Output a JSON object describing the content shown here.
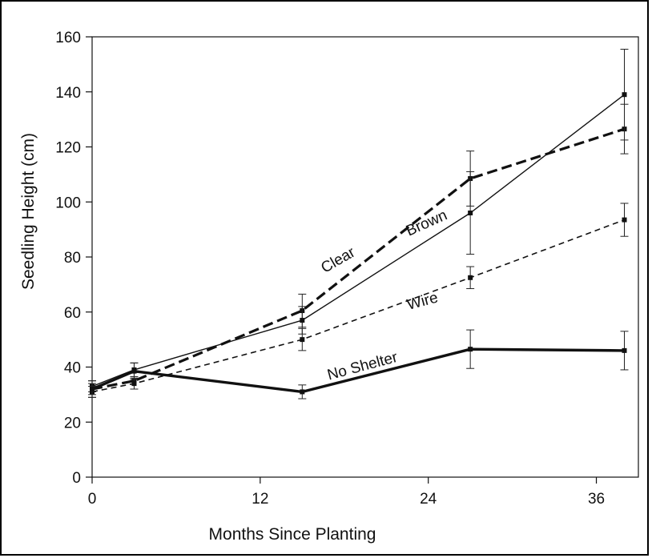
{
  "chart_data": {
    "type": "line",
    "title": "",
    "xlabel": "Months Since Planting",
    "ylabel": "Seedling Height (cm)",
    "xlim": [
      0,
      39
    ],
    "ylim": [
      0,
      160
    ],
    "xticks": [
      0,
      12,
      24,
      36
    ],
    "yticks": [
      0,
      20,
      40,
      60,
      80,
      100,
      120,
      140,
      160
    ],
    "xtick_labels": [
      "0",
      "12",
      "24",
      "36"
    ],
    "ytick_labels": [
      "0",
      "20",
      "40",
      "60",
      "80",
      "100",
      "120",
      "140",
      "160"
    ],
    "grid": false,
    "legend": "none (series labelled inline)",
    "series": [
      {
        "name": "Clear",
        "style": "thick-dashed",
        "color": "#111111",
        "x": [
          0,
          3,
          15,
          27,
          38
        ],
        "y": [
          32,
          35,
          60.5,
          108.5,
          126.5
        ],
        "err": [
          3,
          3,
          6,
          10,
          9
        ]
      },
      {
        "name": "Brown",
        "style": "thin-solid",
        "color": "#111111",
        "x": [
          0,
          3,
          15,
          27,
          38
        ],
        "y": [
          33,
          39,
          57,
          96,
          139
        ],
        "err": [
          2,
          2.5,
          5,
          15,
          16.5
        ]
      },
      {
        "name": "Wire",
        "style": "thin-dashed",
        "color": "#111111",
        "x": [
          0,
          3,
          15,
          27,
          38
        ],
        "y": [
          31,
          34,
          50,
          72.5,
          93.5
        ],
        "err": [
          2,
          2,
          4,
          4,
          6
        ]
      },
      {
        "name": "No Shelter",
        "style": "thick-solid",
        "color": "#111111",
        "x": [
          0,
          3,
          15,
          27,
          38
        ],
        "y": [
          32,
          38.5,
          31,
          46.5,
          46
        ],
        "err": [
          2,
          3,
          2.5,
          7,
          7
        ]
      }
    ],
    "annotations": [
      {
        "text": "Clear",
        "series": "Clear"
      },
      {
        "text": "Brown",
        "series": "Brown"
      },
      {
        "text": "Wire",
        "series": "Wire"
      },
      {
        "text": "No Shelter",
        "series": "No Shelter"
      }
    ]
  }
}
